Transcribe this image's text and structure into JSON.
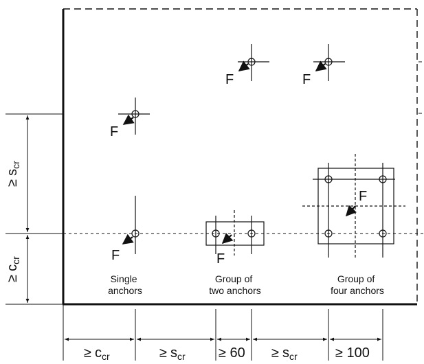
{
  "labels": {
    "force": "F",
    "single_anchors": [
      "Single",
      "anchors"
    ],
    "group_two": [
      "Group of",
      "two anchors"
    ],
    "group_four": [
      "Group of",
      "four anchors"
    ]
  },
  "dimensions": {
    "ge": "≥",
    "c_main": "c",
    "c_sub": "cr",
    "s_main": "s",
    "s_sub": "cr",
    "sixty": "≥ 60",
    "hundred": "≥ 100"
  }
}
